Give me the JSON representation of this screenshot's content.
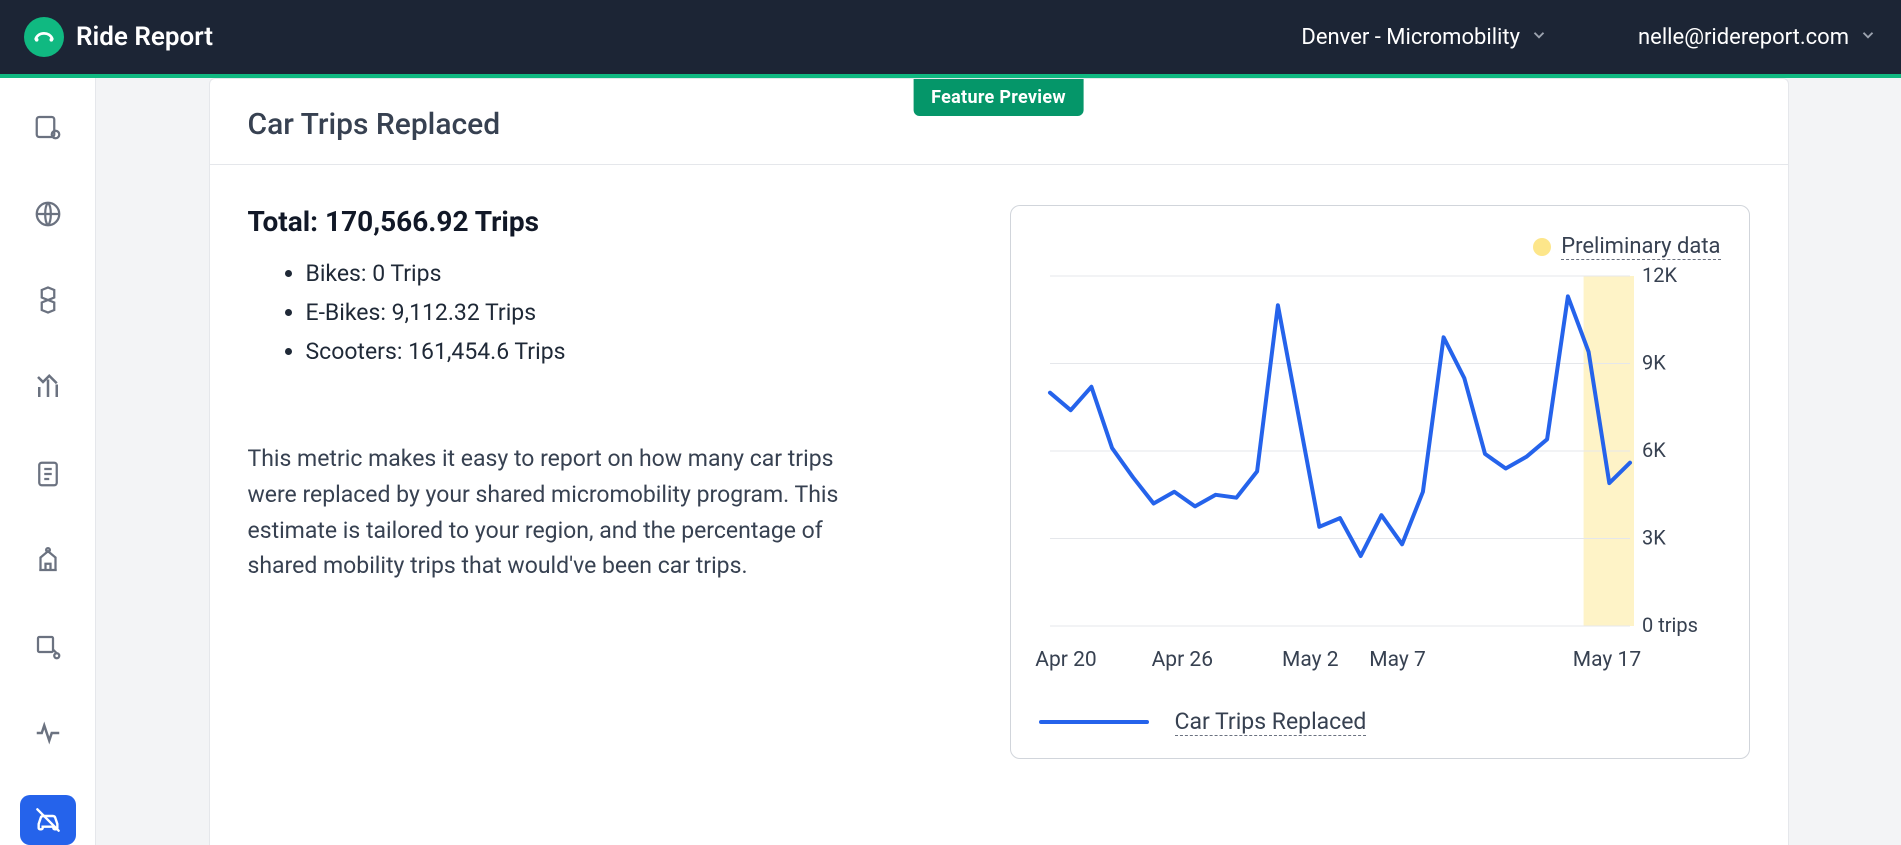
{
  "header": {
    "brand": "Ride Report",
    "region_selector": "Denver - Micromobility",
    "user_email": "nelle@ridereport.com"
  },
  "feature_badge": "Feature Preview",
  "page": {
    "title": "Car Trips Replaced",
    "total_label": "Total: 170,566.92 Trips",
    "breakdown": [
      "Bikes: 0 Trips",
      "E-Bikes: 9,112.32 Trips",
      "Scooters: 161,454.6 Trips"
    ],
    "description": "This metric makes it easy to report on how many car trips were replaced by your shared micromobility program. This estimate is tailored to your region, and the percentage of shared mobility trips that would've been car trips."
  },
  "chart": {
    "type": "line",
    "preliminary_label": "Preliminary data",
    "legend": "Car Trips Replaced",
    "line_color": "#2563eb",
    "line_width": 4,
    "background_color": "#ffffff",
    "grid_color": "#e5e7eb",
    "preliminary_band_color": "#fef3c7",
    "ylim": [
      0,
      12000
    ],
    "y_ticks": [
      {
        "v": 12000,
        "label": "12K"
      },
      {
        "v": 9000,
        "label": "9K"
      },
      {
        "v": 6000,
        "label": "6K"
      },
      {
        "v": 3000,
        "label": "3K"
      },
      {
        "v": 0,
        "label": "0 trips"
      }
    ],
    "x_labels": [
      "Apr 20",
      "Apr 26",
      "May 2",
      "May 7",
      "May 17"
    ],
    "x_positions": [
      0.03,
      0.23,
      0.45,
      0.6,
      0.96
    ],
    "preliminary_start_frac": 0.92,
    "values": [
      8000,
      7400,
      8200,
      6100,
      5100,
      4200,
      4600,
      4100,
      4500,
      4400,
      5300,
      11000,
      7200,
      3400,
      3700,
      2400,
      3800,
      2800,
      4600,
      9900,
      8500,
      5900,
      5400,
      5800,
      6400,
      11300,
      9400,
      4900,
      5600
    ],
    "label_fontsize": 20
  },
  "colors": {
    "topbar_bg": "#1c2535",
    "accent_green": "#10b981",
    "accent_blue": "#2563eb",
    "text_primary": "#1f2937"
  }
}
